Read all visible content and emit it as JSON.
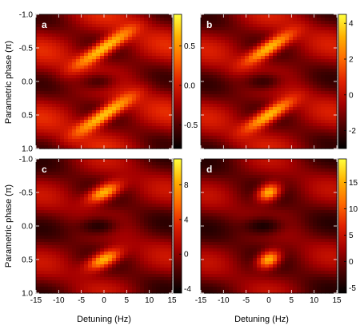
{
  "chart_data": {
    "type": "heatmap",
    "shared_x_label": "Detuning (Hz)",
    "shared_y_label": "Parametric phase (π)",
    "x_range": [
      -15,
      15
    ],
    "y_range": [
      -1.0,
      1.0
    ],
    "y_inverted": true,
    "x_ticks": [
      "-15",
      "-10",
      "-5",
      "0",
      "5",
      "10",
      "15"
    ],
    "y_ticks": [
      "-1.0",
      "-0.5",
      "0.0",
      "0.5",
      "1.0"
    ],
    "colormap": "black-red-orange-yellow (hot)",
    "colormap_stops": [
      "#000000",
      "#4a0000",
      "#a50000",
      "#e02000",
      "#ff6a00",
      "#ffb000",
      "#ffff3c"
    ],
    "panels": [
      {
        "label": "a",
        "colorbar_range": [
          -0.8,
          0.9
        ],
        "colorbar_ticks": [
          {
            "value": 0.5,
            "text": "0.5"
          },
          {
            "value": 0.0,
            "text": "0.0"
          },
          {
            "value": -0.5,
            "text": "-0.5"
          }
        ],
        "peaks": [
          {
            "x": 0.0,
            "y": -0.5
          },
          {
            "x": 0.0,
            "y": 0.5
          }
        ],
        "peak_width_hz": 4.0,
        "peak_tilt": 0.12,
        "background_level": 0.55
      },
      {
        "label": "b",
        "colorbar_range": [
          -3.0,
          4.5
        ],
        "colorbar_ticks": [
          {
            "value": 4,
            "text": "4"
          },
          {
            "value": 2,
            "text": "2"
          },
          {
            "value": 0,
            "text": "0"
          },
          {
            "value": -2,
            "text": "-2"
          }
        ],
        "peaks": [
          {
            "x": 0.0,
            "y": -0.5
          },
          {
            "x": 0.0,
            "y": 0.5
          }
        ],
        "peak_width_hz": 3.5,
        "peak_tilt": 0.11,
        "background_level": 0.5
      },
      {
        "label": "c",
        "colorbar_range": [
          -4.5,
          11.0
        ],
        "colorbar_ticks": [
          {
            "value": 8,
            "text": "8"
          },
          {
            "value": 4,
            "text": "4"
          },
          {
            "value": 0,
            "text": "0"
          },
          {
            "value": -4,
            "text": "-4"
          }
        ],
        "peaks": [
          {
            "x": 0.0,
            "y": -0.5
          },
          {
            "x": 0.0,
            "y": 0.5
          }
        ],
        "peak_width_hz": 2.6,
        "peak_tilt": 0.07,
        "background_level": 0.45
      },
      {
        "label": "d",
        "colorbar_range": [
          -6.0,
          19.5
        ],
        "colorbar_ticks": [
          {
            "value": 15,
            "text": "15"
          },
          {
            "value": 10,
            "text": "10"
          },
          {
            "value": 5,
            "text": "5"
          },
          {
            "value": 0,
            "text": "0"
          },
          {
            "value": -5,
            "text": "-5"
          }
        ],
        "peaks": [
          {
            "x": 0.0,
            "y": -0.5
          },
          {
            "x": 0.0,
            "y": 0.5
          }
        ],
        "peak_width_hz": 1.8,
        "peak_tilt": 0.04,
        "background_level": 0.42
      }
    ]
  }
}
